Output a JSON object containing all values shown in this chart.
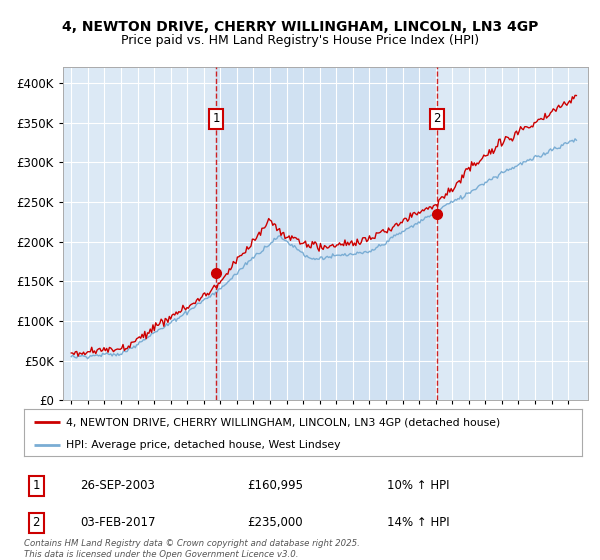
{
  "title_line1": "4, NEWTON DRIVE, CHERRY WILLINGHAM, LINCOLN, LN3 4GP",
  "title_line2": "Price paid vs. HM Land Registry's House Price Index (HPI)",
  "background_color": "#dce9f5",
  "shade_between_color": "#c8dcf0",
  "fig_bg_color": "#ffffff",
  "red_line_color": "#cc0000",
  "blue_line_color": "#7aadd4",
  "grid_color": "#ffffff",
  "sale1_date_x": 2003.74,
  "sale1_price": 160995,
  "sale2_date_x": 2017.09,
  "sale2_price": 235000,
  "legend_label_red": "4, NEWTON DRIVE, CHERRY WILLINGHAM, LINCOLN, LN3 4GP (detached house)",
  "legend_label_blue": "HPI: Average price, detached house, West Lindsey",
  "annotation1_date": "26-SEP-2003",
  "annotation1_price": "£160,995",
  "annotation1_hpi": "10% ↑ HPI",
  "annotation2_date": "03-FEB-2017",
  "annotation2_price": "£235,000",
  "annotation2_hpi": "14% ↑ HPI",
  "footer": "Contains HM Land Registry data © Crown copyright and database right 2025.\nThis data is licensed under the Open Government Licence v3.0.",
  "ylim_min": 0,
  "ylim_max": 420000,
  "xmin": 1994.5,
  "xmax": 2026.2
}
